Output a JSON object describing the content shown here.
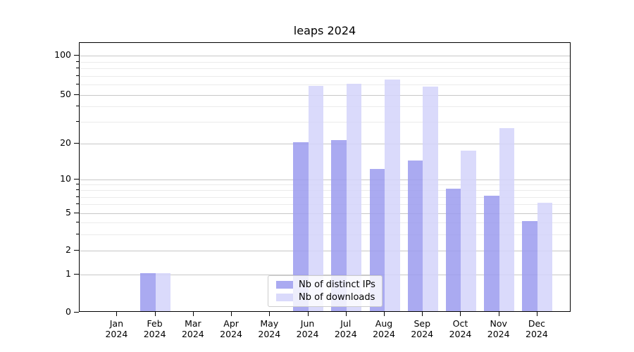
{
  "chart_data": {
    "type": "bar",
    "title": "leaps 2024",
    "categories": [
      "Jan",
      "Feb",
      "Mar",
      "Apr",
      "May",
      "Jun",
      "Jul",
      "Aug",
      "Sep",
      "Oct",
      "Nov",
      "Dec"
    ],
    "year_label": "2024",
    "series": [
      {
        "name": "Nb of distinct IPs",
        "color": "#9b9bee",
        "values": [
          0,
          1,
          0,
          0,
          0,
          20,
          21,
          12,
          14,
          8,
          7,
          4
        ]
      },
      {
        "name": "Nb of downloads",
        "color": "#d3d3fa",
        "values": [
          0,
          1,
          0,
          0,
          0,
          57,
          59,
          64,
          56,
          17,
          26,
          6
        ]
      }
    ],
    "yticks": [
      0,
      1,
      2,
      5,
      10,
      20,
      50,
      100
    ],
    "minor_yticks": [
      3,
      4,
      6,
      7,
      8,
      9,
      30,
      40,
      60,
      70,
      80,
      90
    ],
    "ylim": [
      0,
      120
    ],
    "scale": "symlog",
    "grid": "both",
    "legend_position": "lower center-left",
    "colors": {
      "major_grid": "#c7c7c7",
      "minor_grid": "#ebebeb",
      "axis": "#000000"
    }
  }
}
